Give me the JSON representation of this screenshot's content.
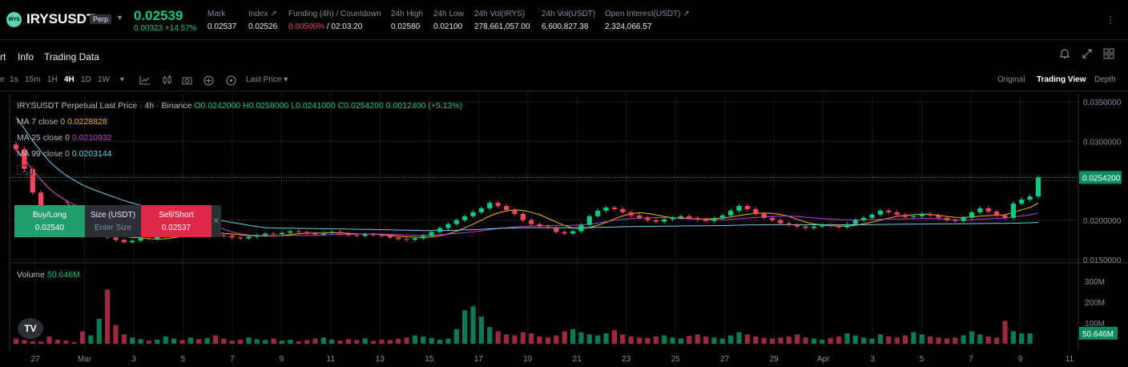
{
  "header": {
    "logo_text": "IRYS",
    "symbol": "IRYSUSDT",
    "badge": "Perp",
    "last_price": "0.02539",
    "change": "0.00323 +14.57%",
    "stats": [
      {
        "label": "Mark",
        "value": "0.02537"
      },
      {
        "label": "Index ↗",
        "value": "0.02526"
      },
      {
        "label": "Funding (4h) / Countdown",
        "value_red": "0.00500%",
        "value": " / 02:03:20"
      },
      {
        "label": "24h High",
        "value": "0.02580"
      },
      {
        "label": "24h Low",
        "value": "0.02100"
      },
      {
        "label": "24h Vol(IRYS)",
        "value": "278,661,057.00"
      },
      {
        "label": "24h Vol(USDT)",
        "value": "6,600,827.38"
      },
      {
        "label": "Open Interest(USDT) ↗",
        "value": "2,324,066.57"
      }
    ]
  },
  "tabs": [
    "rt",
    "Info",
    "Trading Data"
  ],
  "toolbar": {
    "intervals": [
      "e",
      "1s",
      "15m",
      "1H",
      "4H",
      "1D",
      "1W"
    ],
    "active_interval": "4H",
    "price_type": "Last Price",
    "views": [
      "Original",
      "Trading View",
      "Depth"
    ],
    "active_view": "Trading View"
  },
  "legend": {
    "title": "IRYSUSDT Perpetual Last Price · 4h · Binance",
    "ohlc": "O0.0242000 H0.0258000 L0.0241000 C0.0254200 0.0012400 (+5.13%)",
    "ma7_label": "MA 7 close 0",
    "ma7_value": "0.0228828",
    "ma25_label": "MA 25 close 0",
    "ma25_value": "0.0210932",
    "ma99_label": "MA 99 close 0",
    "ma99_value": "0.0203144",
    "volume_label": "Volume",
    "volume_value": "50.646M"
  },
  "order_panel": {
    "buy_label": "Buy/Long",
    "buy_price": "0.02540",
    "size_label": "Size (USDT)",
    "size_placeholder": "Enter Size",
    "sell_label": "Sell/Short",
    "sell_price": "0.02537"
  },
  "colors": {
    "up": "#0ecb81",
    "down": "#f6465d",
    "ma7": "#f0b90b",
    "ma25": "#c13fd1",
    "ma99": "#6ad4e6"
  },
  "chart_data": {
    "type": "candlestick",
    "price_axis": {
      "ticks": [
        "0.0350000",
        "0.0300000",
        "0.0250000",
        "0.0200000",
        "0.0150000"
      ],
      "ylim": [
        0.015,
        0.035
      ]
    },
    "last_price_label": "0.0254200",
    "last_price": 0.02542,
    "volume_axis": {
      "ticks": [
        "300M",
        "200M",
        "100M"
      ],
      "ylim": [
        0,
        300
      ]
    },
    "last_volume_label": "50.646M",
    "last_volume": 50.646,
    "x_labels": [
      "27",
      "Mar",
      "3",
      "5",
      "7",
      "9",
      "11",
      "13",
      "15",
      "17",
      "19",
      "21",
      "23",
      "25",
      "27",
      "29",
      "Apr",
      "3",
      "5",
      "7",
      "9",
      "11"
    ],
    "closes": [
      0.029,
      0.0265,
      0.0235,
      0.0215,
      0.0195,
      0.019,
      0.0185,
      0.0183,
      0.018,
      0.0182,
      0.0185,
      0.0178,
      0.0175,
      0.0172,
      0.0174,
      0.0177,
      0.0176,
      0.0179,
      0.0182,
      0.0185,
      0.0184,
      0.0186,
      0.0183,
      0.0185,
      0.0181,
      0.018,
      0.0178,
      0.0177,
      0.0179,
      0.0181,
      0.0183,
      0.0182,
      0.0184,
      0.0186,
      0.0185,
      0.0183,
      0.0182,
      0.0184,
      0.0185,
      0.0183,
      0.0181,
      0.018,
      0.0182,
      0.0181,
      0.018,
      0.0178,
      0.0176,
      0.0175,
      0.0177,
      0.018,
      0.0185,
      0.019,
      0.0195,
      0.02,
      0.0205,
      0.021,
      0.0215,
      0.0222,
      0.0218,
      0.0213,
      0.0208,
      0.02,
      0.0195,
      0.0192,
      0.019,
      0.0185,
      0.0183,
      0.0186,
      0.0194,
      0.0205,
      0.0212,
      0.0216,
      0.0214,
      0.021,
      0.0206,
      0.0203,
      0.02,
      0.0198,
      0.0201,
      0.0203,
      0.0205,
      0.0203,
      0.0201,
      0.0199,
      0.0202,
      0.0206,
      0.0212,
      0.0218,
      0.0214,
      0.0208,
      0.0203,
      0.02,
      0.0196,
      0.0194,
      0.0192,
      0.019,
      0.0192,
      0.0194,
      0.0193,
      0.0191,
      0.0195,
      0.02,
      0.0203,
      0.0207,
      0.0212,
      0.021,
      0.0207,
      0.0204,
      0.0205,
      0.0208,
      0.0206,
      0.0203,
      0.02,
      0.0199,
      0.0203,
      0.021,
      0.0215,
      0.0211,
      0.0206,
      0.0203,
      0.0221,
      0.0226,
      0.023,
      0.02542
    ],
    "volumes": [
      25,
      18,
      12,
      10,
      35,
      20,
      15,
      8,
      60,
      40,
      120,
      260,
      90,
      45,
      30,
      22,
      15,
      20,
      35,
      25,
      18,
      30,
      22,
      28,
      40,
      25,
      15,
      20,
      30,
      22,
      18,
      25,
      15,
      20,
      12,
      18,
      25,
      30,
      20,
      15,
      22,
      18,
      26,
      14,
      20,
      18,
      24,
      30,
      40,
      35,
      28,
      20,
      25,
      70,
      160,
      180,
      130,
      80,
      60,
      45,
      40,
      55,
      50,
      35,
      30,
      40,
      60,
      70,
      55,
      45,
      40,
      50,
      65,
      45,
      35,
      30,
      28,
      35,
      40,
      30,
      25,
      38,
      45,
      35,
      30,
      25,
      40,
      55,
      45,
      35,
      28,
      25,
      30,
      35,
      45,
      30,
      25,
      20,
      28,
      35,
      50,
      40,
      30,
      25,
      45,
      35,
      30,
      40,
      55,
      45,
      35,
      30,
      25,
      30,
      40,
      60,
      45,
      35,
      30,
      110,
      60,
      50,
      50.646
    ]
  }
}
